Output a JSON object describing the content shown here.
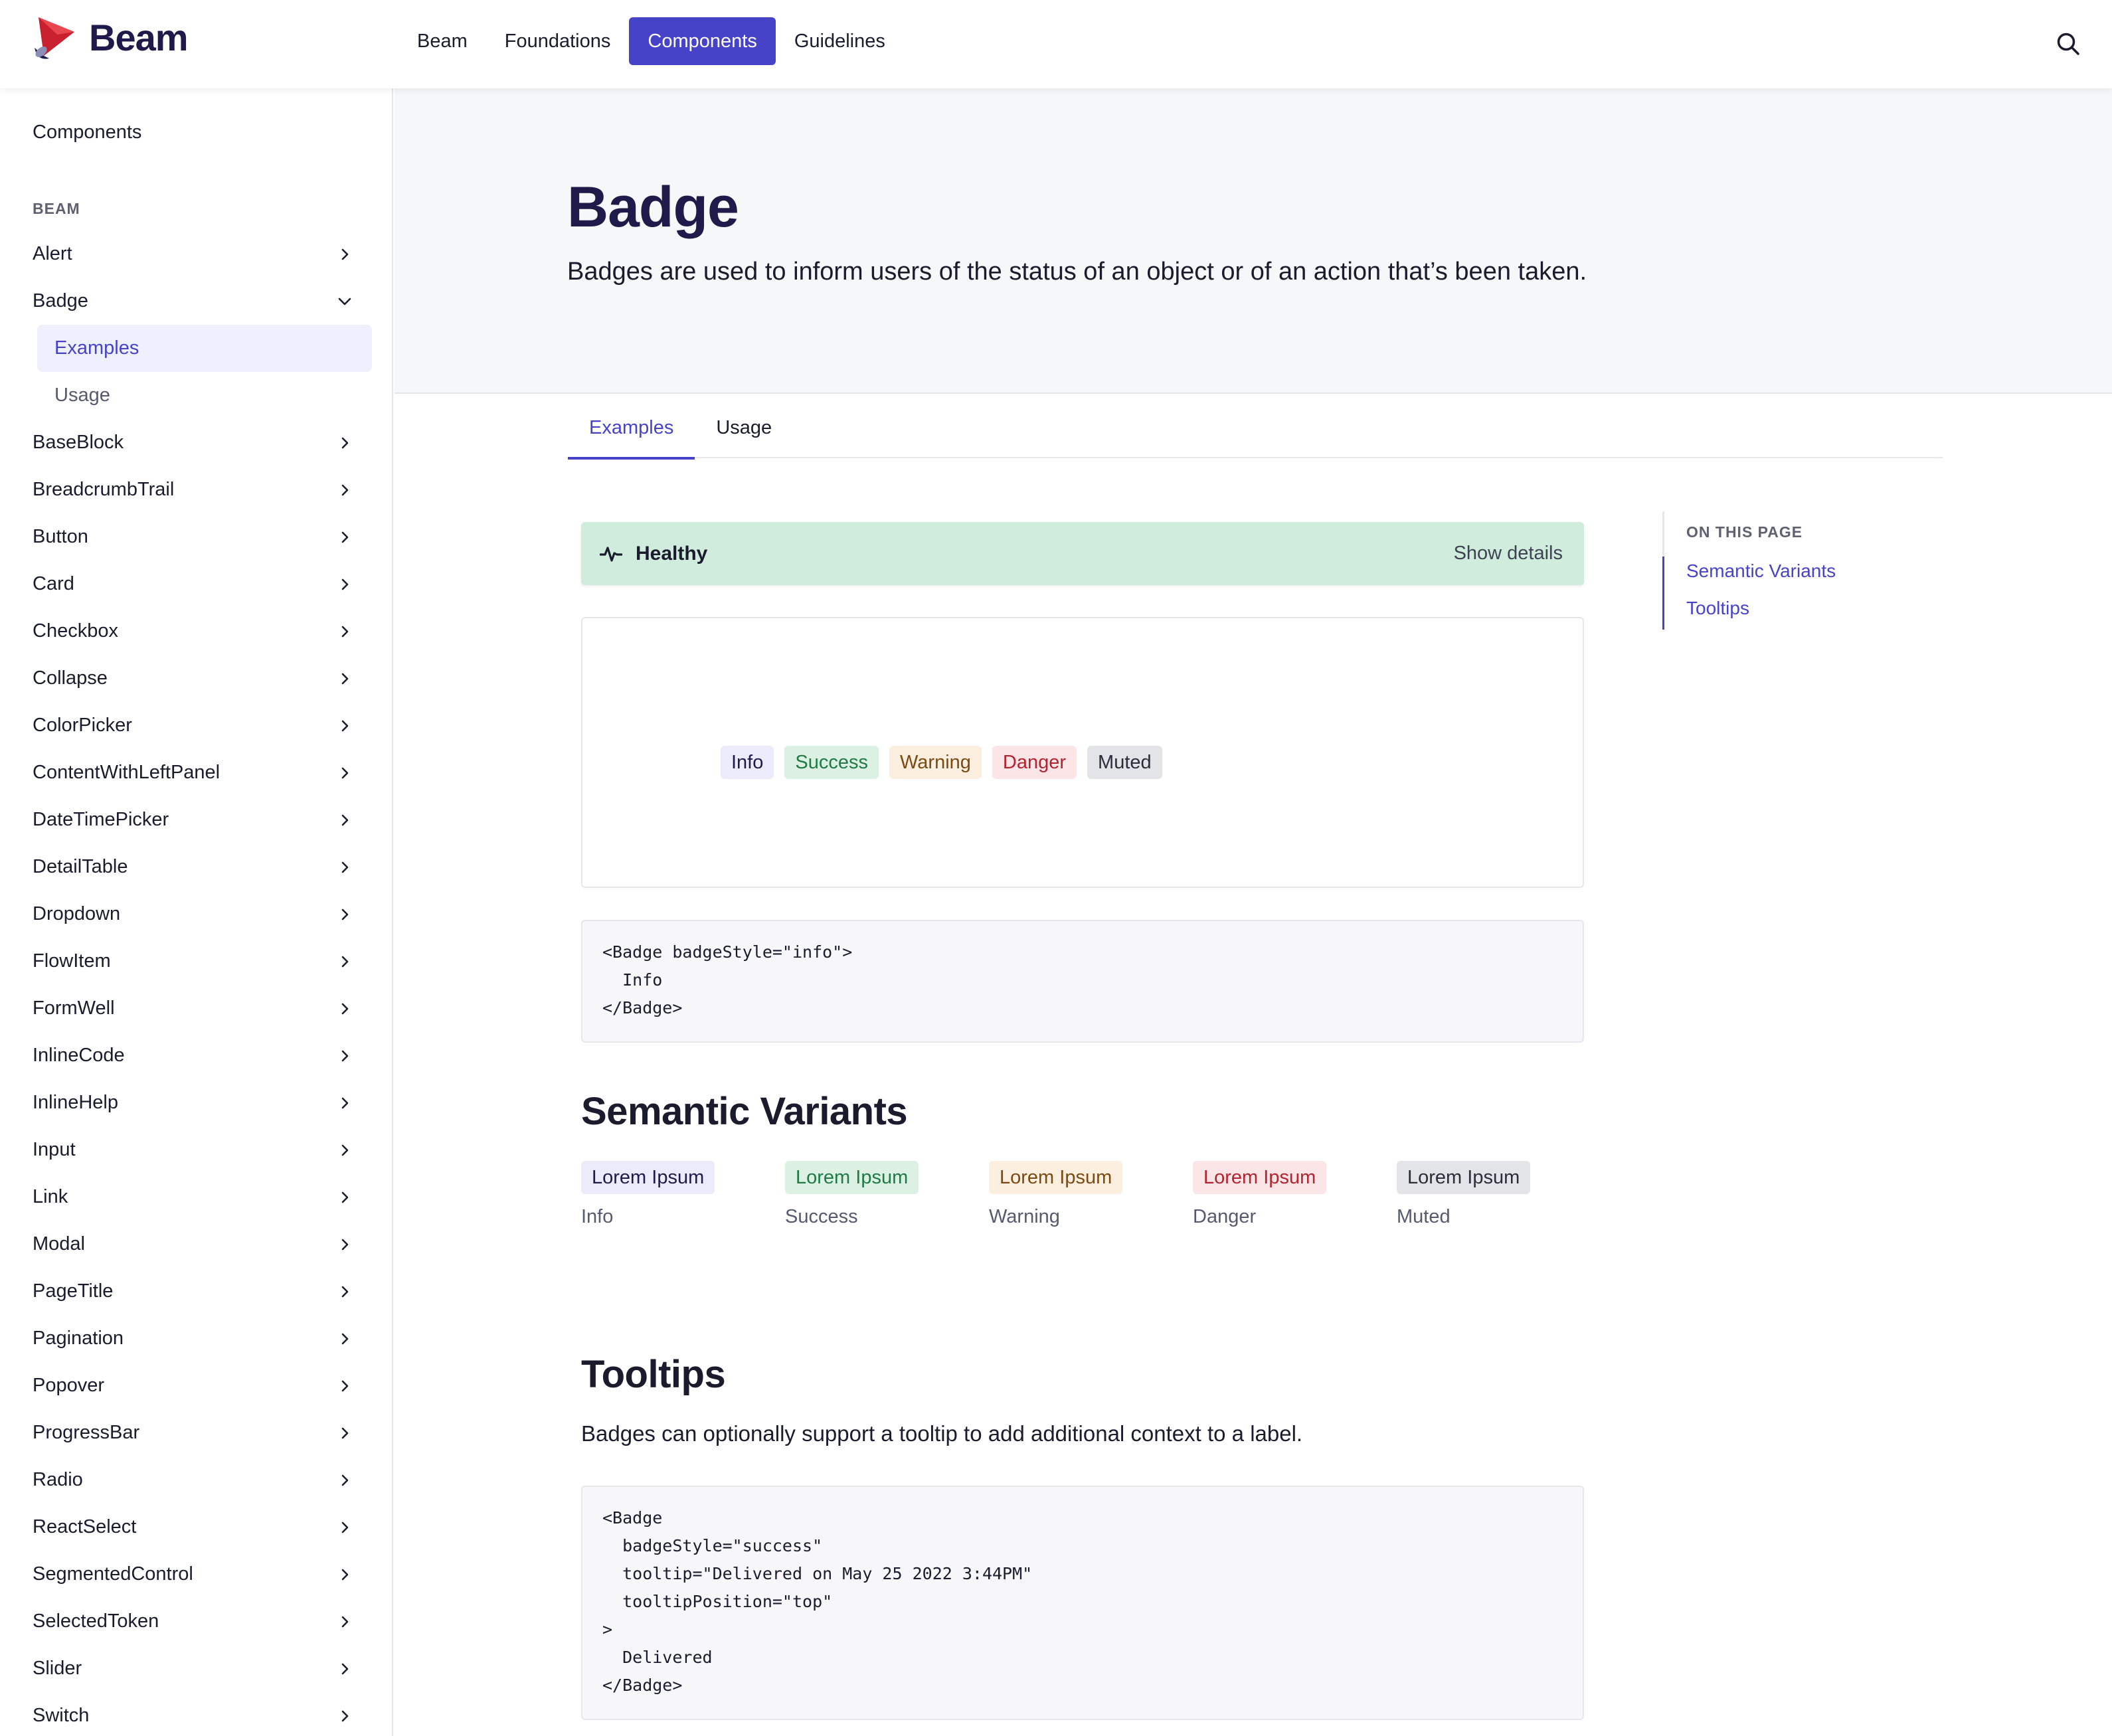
{
  "brand": {
    "name": "Beam",
    "colors": {
      "accent": "#4743c9",
      "heading": "#1e1b4b"
    }
  },
  "nav": {
    "items": [
      {
        "label": "Beam",
        "active": false
      },
      {
        "label": "Foundations",
        "active": false
      },
      {
        "label": "Components",
        "active": true
      },
      {
        "label": "Guidelines",
        "active": false
      }
    ],
    "search_icon": "search-icon"
  },
  "sidebar": {
    "home": "Components",
    "section": "BEAM",
    "items": [
      "Alert",
      "Badge",
      "BaseBlock",
      "BreadcrumbTrail",
      "Button",
      "Card",
      "Checkbox",
      "Collapse",
      "ColorPicker",
      "ContentWithLeftPanel",
      "DateTimePicker",
      "DetailTable",
      "Dropdown",
      "FlowItem",
      "FormWell",
      "InlineCode",
      "InlineHelp",
      "Input",
      "Link",
      "Modal",
      "PageTitle",
      "Pagination",
      "Popover",
      "ProgressBar",
      "Radio",
      "ReactSelect",
      "SegmentedControl",
      "SelectedToken",
      "Slider",
      "Switch"
    ],
    "expanded": "Badge",
    "sub_items": [
      {
        "label": "Examples",
        "active": true
      },
      {
        "label": "Usage",
        "active": false
      }
    ]
  },
  "page": {
    "title": "Badge",
    "description": "Badges are used to inform users of the status of an object or of an action that’s been taken."
  },
  "tabs": [
    {
      "label": "Examples",
      "active": true
    },
    {
      "label": "Usage",
      "active": false
    }
  ],
  "status": {
    "icon": "pulse-icon",
    "label": "Healthy",
    "action": "Show details"
  },
  "preview_badges": [
    {
      "label": "Info",
      "style": "info"
    },
    {
      "label": "Success",
      "style": "success"
    },
    {
      "label": "Warning",
      "style": "warning"
    },
    {
      "label": "Danger",
      "style": "danger"
    },
    {
      "label": "Muted",
      "style": "muted"
    }
  ],
  "code_example_1": "<Badge badgeStyle=\"info\">\n  Info\n</Badge>",
  "semantic_variants": {
    "heading": "Semantic Variants",
    "items": [
      {
        "badge": "Lorem Ipsum",
        "label": "Info",
        "style": "info"
      },
      {
        "badge": "Lorem Ipsum",
        "label": "Success",
        "style": "success"
      },
      {
        "badge": "Lorem Ipsum",
        "label": "Warning",
        "style": "warning"
      },
      {
        "badge": "Lorem Ipsum",
        "label": "Danger",
        "style": "danger"
      },
      {
        "badge": "Lorem Ipsum",
        "label": "Muted",
        "style": "muted"
      }
    ]
  },
  "tooltips": {
    "heading": "Tooltips",
    "description": "Badges can optionally support a tooltip to add additional context to a label.",
    "code": "<Badge\n  badgeStyle=\"success\"\n  tooltip=\"Delivered on May 25 2022 3:44PM\"\n  tooltipPosition=\"top\"\n>\n  Delivered\n</Badge>"
  },
  "toc": {
    "title": "ON THIS PAGE",
    "links": [
      "Semantic Variants",
      "Tooltips"
    ]
  }
}
